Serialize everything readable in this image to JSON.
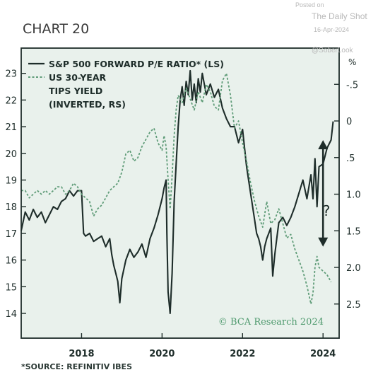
{
  "watermark": {
    "posted": "Posted on",
    "source": "The Daily Shot",
    "date": "16-Apr-2024",
    "handle": "@SoberLook"
  },
  "chart_data": {
    "type": "line",
    "title": "CHART 20",
    "footnote": "*SOURCE: REFINITIV IBES",
    "credit": "© BCA Research 2024",
    "right_axis_unit": "%",
    "x_ticks": [
      "2018",
      "2020",
      "2022",
      "2024"
    ],
    "x_tick_values": [
      2018,
      2020,
      2022,
      2024
    ],
    "xlim": [
      2016.5,
      2024.4
    ],
    "y_left": {
      "ticks": [
        "14",
        "15",
        "16",
        "17",
        "18",
        "19",
        "20",
        "21",
        "22",
        "23"
      ],
      "ylim": [
        13.6,
        23.8
      ]
    },
    "y_right": {
      "ticks": [
        "-.5",
        "0",
        ".5",
        "1.0",
        "1.5",
        "2.0",
        "2.5"
      ],
      "ylim": [
        2.75,
        -0.95
      ],
      "inverted": true
    },
    "annotations": {
      "question_mark": "?",
      "double_arrow": {
        "x": 2024.0,
        "from": 20.5,
        "to": 16.5
      }
    },
    "legend_position": "top-left",
    "grid": false,
    "series": [
      {
        "name": "S&P 500 FORWARD P/E RATIO* (LS)",
        "axis": "left",
        "style": "solid",
        "color": "#1e2d2a",
        "x": [
          2016.5,
          2016.6,
          2016.7,
          2016.8,
          2016.9,
          2017.0,
          2017.1,
          2017.2,
          2017.3,
          2017.4,
          2017.5,
          2017.6,
          2017.7,
          2017.8,
          2017.9,
          2018.0,
          2018.05,
          2018.1,
          2018.2,
          2018.3,
          2018.4,
          2018.5,
          2018.6,
          2018.7,
          2018.75,
          2018.8,
          2018.85,
          2018.9,
          2018.95,
          2019.0,
          2019.1,
          2019.2,
          2019.3,
          2019.4,
          2019.5,
          2019.6,
          2019.7,
          2019.8,
          2019.9,
          2020.0,
          2020.05,
          2020.1,
          2020.12,
          2020.15,
          2020.2,
          2020.25,
          2020.3,
          2020.35,
          2020.4,
          2020.45,
          2020.5,
          2020.55,
          2020.6,
          2020.65,
          2020.7,
          2020.75,
          2020.8,
          2020.85,
          2020.9,
          2020.95,
          2021.0,
          2021.1,
          2021.2,
          2021.3,
          2021.4,
          2021.5,
          2021.6,
          2021.7,
          2021.8,
          2021.9,
          2022.0,
          2022.1,
          2022.2,
          2022.3,
          2022.35,
          2022.4,
          2022.45,
          2022.5,
          2022.55,
          2022.6,
          2022.7,
          2022.75,
          2022.8,
          2022.85,
          2022.9,
          2023.0,
          2023.1,
          2023.2,
          2023.3,
          2023.4,
          2023.5,
          2023.6,
          2023.7,
          2023.75,
          2023.8,
          2023.85,
          2023.9,
          2024.0,
          2024.1,
          2024.2,
          2024.25
        ],
        "y": [
          17.1,
          17.8,
          17.5,
          17.9,
          17.6,
          17.8,
          17.4,
          17.7,
          18.0,
          17.9,
          18.2,
          18.3,
          18.6,
          18.4,
          18.6,
          18.6,
          17.0,
          16.9,
          17.0,
          16.7,
          16.8,
          16.9,
          16.5,
          16.8,
          16.2,
          15.8,
          15.5,
          15.2,
          14.4,
          15.3,
          16.0,
          16.4,
          16.1,
          16.3,
          16.6,
          16.1,
          16.8,
          17.2,
          17.7,
          18.3,
          18.7,
          19.0,
          17.0,
          14.8,
          14.0,
          15.5,
          18.2,
          19.6,
          21.0,
          22.0,
          22.5,
          21.8,
          22.7,
          22.2,
          23.1,
          22.0,
          22.6,
          21.9,
          22.8,
          22.3,
          23.0,
          22.2,
          22.6,
          22.1,
          22.4,
          21.7,
          21.3,
          21.0,
          21.0,
          20.4,
          20.9,
          19.5,
          18.5,
          17.5,
          17.0,
          16.8,
          16.5,
          16.0,
          16.5,
          16.8,
          17.2,
          15.4,
          16.2,
          16.8,
          17.4,
          17.6,
          17.3,
          17.6,
          18.0,
          18.5,
          19.0,
          18.3,
          19.2,
          18.3,
          19.8,
          18.0,
          19.5,
          19.6,
          20.2,
          20.5,
          21.2
        ]
      },
      {
        "name": "US 30-YEAR TIPS YIELD (INVERTED, RS)",
        "axis": "right",
        "style": "dashed",
        "color": "#5f9c78",
        "x": [
          2016.5,
          2016.6,
          2016.7,
          2016.8,
          2016.9,
          2017.0,
          2017.1,
          2017.2,
          2017.3,
          2017.4,
          2017.5,
          2017.6,
          2017.7,
          2017.8,
          2017.9,
          2018.0,
          2018.1,
          2018.2,
          2018.3,
          2018.4,
          2018.5,
          2018.6,
          2018.7,
          2018.8,
          2018.9,
          2019.0,
          2019.1,
          2019.2,
          2019.3,
          2019.4,
          2019.5,
          2019.6,
          2019.7,
          2019.8,
          2019.9,
          2020.0,
          2020.05,
          2020.1,
          2020.15,
          2020.2,
          2020.25,
          2020.3,
          2020.35,
          2020.4,
          2020.5,
          2020.6,
          2020.7,
          2020.8,
          2020.9,
          2021.0,
          2021.1,
          2021.2,
          2021.3,
          2021.4,
          2021.5,
          2021.6,
          2021.7,
          2021.8,
          2021.9,
          2022.0,
          2022.1,
          2022.2,
          2022.3,
          2022.4,
          2022.5,
          2022.6,
          2022.7,
          2022.8,
          2022.9,
          2023.0,
          2023.1,
          2023.2,
          2023.3,
          2023.4,
          2023.5,
          2023.6,
          2023.7,
          2023.75,
          2023.8,
          2023.85,
          2023.9,
          2024.0,
          2024.1,
          2024.2
        ],
        "y": [
          0.95,
          0.95,
          1.05,
          1.0,
          0.95,
          1.0,
          0.95,
          1.0,
          0.95,
          0.9,
          0.9,
          1.0,
          0.95,
          0.85,
          0.9,
          1.0,
          1.05,
          1.1,
          1.3,
          1.2,
          1.15,
          1.05,
          0.95,
          0.9,
          0.85,
          0.7,
          0.45,
          0.4,
          0.55,
          0.5,
          0.35,
          0.25,
          0.15,
          0.1,
          0.3,
          0.4,
          0.2,
          0.35,
          0.8,
          1.2,
          0.75,
          0.2,
          -0.15,
          -0.35,
          -0.25,
          -0.45,
          -0.3,
          -0.15,
          -0.4,
          -0.25,
          -0.5,
          -0.4,
          -0.2,
          -0.15,
          -0.55,
          -0.65,
          -0.35,
          0.1,
          0.0,
          0.3,
          0.55,
          0.85,
          1.1,
          1.3,
          1.45,
          1.1,
          1.4,
          1.35,
          1.2,
          1.4,
          1.6,
          1.55,
          1.75,
          1.9,
          2.05,
          2.25,
          2.5,
          2.35,
          2.0,
          1.85,
          2.0,
          2.05,
          2.1,
          2.2
        ]
      }
    ]
  }
}
